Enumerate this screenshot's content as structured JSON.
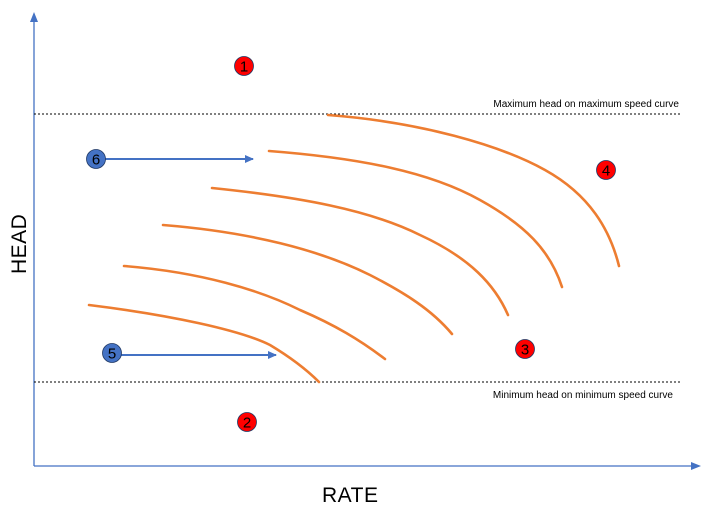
{
  "axes": {
    "x_label": "RATE",
    "y_label": "HEAD",
    "axis_color": "#4472C4"
  },
  "limit_lines": {
    "max_label": "Maximum head on maximum speed curve",
    "min_label": "Minimum head on minimum speed curve"
  },
  "curve_color": "#ED7D31",
  "curve_count": 6,
  "markers": [
    {
      "id": "1",
      "color": "#FF0000"
    },
    {
      "id": "2",
      "color": "#FF0000"
    },
    {
      "id": "3",
      "color": "#FF0000"
    },
    {
      "id": "4",
      "color": "#FF0000"
    },
    {
      "id": "5",
      "color": "#4472C4"
    },
    {
      "id": "6",
      "color": "#4472C4"
    }
  ],
  "arrow_color": "#4472C4"
}
